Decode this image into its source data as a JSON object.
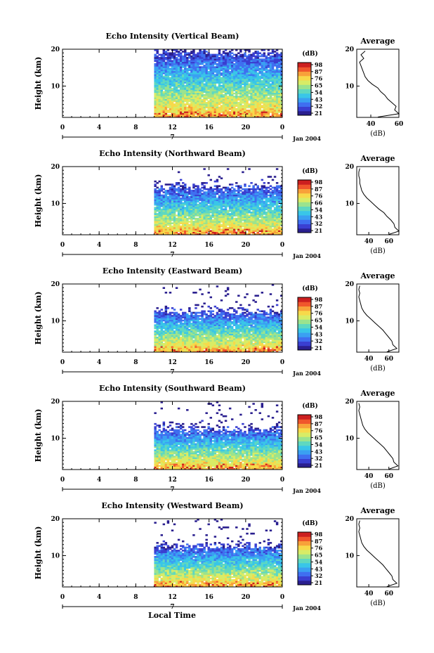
{
  "figure": {
    "xlabel_bottom": "Local Time",
    "colormap": [
      "#2a1f8f",
      "#3a3fd1",
      "#3f6ff0",
      "#3aa0f2",
      "#39c6e8",
      "#5fd8c0",
      "#9be38e",
      "#d8ec66",
      "#f7d94a",
      "#f8a13a",
      "#f0562c",
      "#cc1f1f"
    ]
  },
  "chart_data": [
    {
      "type": "heatmap",
      "title": "Echo Intensity (Vertical Beam)",
      "ylabel": "Height (km)",
      "yticks": [
        "20",
        "10"
      ],
      "xticks": [
        "0",
        "4",
        "8",
        "12",
        "16",
        "20",
        "0"
      ],
      "xlim": [
        0,
        24
      ],
      "ylim": [
        1.5,
        20
      ],
      "date_label": "Jan 2004",
      "day_label": "7",
      "data_start_hour": 10,
      "colorbar": {
        "title": "(dB)",
        "ticks": [
          "98",
          "87",
          "76",
          "65",
          "54",
          "43",
          "32",
          "21"
        ]
      },
      "average_profile": {
        "title": "Average",
        "xlabel": "(dB)",
        "xticks": [
          "40",
          "60"
        ],
        "yticks": [
          "20",
          "10"
        ],
        "xlim": [
          30,
          60
        ],
        "height_km": [
          1.6,
          2.5,
          3.5,
          4.5,
          5.5,
          6.5,
          7.5,
          8.5,
          9.5,
          10.5,
          11.5,
          12.5,
          13.5,
          14.5,
          15.5,
          16.5,
          17.5,
          18.5,
          19.5
        ],
        "db": [
          45,
          60,
          57,
          58,
          55,
          52,
          50,
          47,
          45,
          41,
          38,
          36,
          35,
          34,
          33,
          32,
          35,
          33,
          36
        ]
      }
    },
    {
      "type": "heatmap",
      "title": "Echo Intensity (Northward Beam)",
      "ylabel": "Height (km)",
      "yticks": [
        "20",
        "10"
      ],
      "xticks": [
        "0",
        "4",
        "8",
        "12",
        "16",
        "20",
        "0"
      ],
      "xlim": [
        0,
        24
      ],
      "ylim": [
        1.5,
        20
      ],
      "date_label": "Jan 2004",
      "day_label": "7",
      "data_start_hour": 10,
      "colorbar": {
        "title": "(dB)",
        "ticks": [
          "98",
          "87",
          "76",
          "66",
          "54",
          "43",
          "32",
          "21"
        ]
      },
      "average_profile": {
        "title": "Average",
        "xlabel": "(dB)",
        "xticks": [
          "40",
          "60"
        ],
        "yticks": [
          "20",
          "10"
        ],
        "xlim": [
          28,
          70
        ],
        "height_km": [
          1.6,
          2.5,
          3.5,
          4.5,
          5.5,
          6.5,
          7.5,
          8.5,
          9.5,
          10.5,
          11.5,
          12.5,
          13.5,
          14.5,
          15.5,
          16.5,
          17.5,
          18.5,
          19.5
        ],
        "db": [
          60,
          70,
          66,
          65,
          62,
          58,
          55,
          50,
          46,
          42,
          38,
          35,
          33,
          32,
          31,
          31,
          30,
          30,
          31
        ]
      }
    },
    {
      "type": "heatmap",
      "title": "Echo Intensity (Eastward Beam)",
      "ylabel": "Height (km)",
      "yticks": [
        "20",
        "10"
      ],
      "xticks": [
        "0",
        "4",
        "8",
        "12",
        "16",
        "20",
        "0"
      ],
      "xlim": [
        0,
        24
      ],
      "ylim": [
        1.5,
        20
      ],
      "date_label": "Jan 2004",
      "day_label": "7",
      "data_start_hour": 10,
      "colorbar": {
        "title": "(dB)",
        "ticks": [
          "98",
          "87",
          "76",
          "65",
          "54",
          "43",
          "32",
          "21"
        ]
      },
      "average_profile": {
        "title": "Average",
        "xlabel": "(dB)",
        "xticks": [
          "40",
          "60"
        ],
        "yticks": [
          "20",
          "10"
        ],
        "xlim": [
          28,
          70
        ],
        "height_km": [
          1.6,
          2.5,
          3.5,
          4.5,
          5.5,
          6.5,
          7.5,
          8.5,
          9.5,
          10.5,
          11.5,
          12.5,
          13.5,
          14.5,
          15.5,
          16.5,
          17.5,
          18.5,
          19.5
        ],
        "db": [
          58,
          68,
          64,
          63,
          60,
          57,
          54,
          50,
          46,
          42,
          38,
          35,
          33,
          32,
          31,
          30,
          31,
          30,
          31
        ]
      }
    },
    {
      "type": "heatmap",
      "title": "Echo Intensity (Southward Beam)",
      "ylabel": "Height (km)",
      "yticks": [
        "20",
        "10"
      ],
      "xticks": [
        "0",
        "4",
        "8",
        "12",
        "16",
        "20",
        "0"
      ],
      "xlim": [
        0,
        24
      ],
      "ylim": [
        1.5,
        20
      ],
      "date_label": "Jan 2004",
      "day_label": "7",
      "data_start_hour": 10,
      "colorbar": {
        "title": "(dB)",
        "ticks": [
          "98",
          "87",
          "76",
          "65",
          "54",
          "43",
          "32",
          "21"
        ]
      },
      "average_profile": {
        "title": "Average",
        "xlabel": "(dB)",
        "xticks": [
          "40",
          "60"
        ],
        "yticks": [
          "20",
          "10"
        ],
        "xlim": [
          28,
          70
        ],
        "height_km": [
          1.6,
          2.5,
          3.5,
          4.5,
          5.5,
          6.5,
          7.5,
          8.5,
          9.5,
          10.5,
          11.5,
          12.5,
          13.5,
          14.5,
          15.5,
          16.5,
          17.5,
          18.5,
          19.5
        ],
        "db": [
          60,
          69,
          65,
          64,
          61,
          58,
          55,
          51,
          47,
          43,
          39,
          36,
          34,
          33,
          32,
          31,
          30,
          31,
          30
        ]
      }
    },
    {
      "type": "heatmap",
      "title": "Echo Intensity (Westward Beam)",
      "ylabel": "Height (km)",
      "yticks": [
        "20",
        "10"
      ],
      "xticks": [
        "0",
        "4",
        "8",
        "12",
        "16",
        "20",
        "0"
      ],
      "xlim": [
        0,
        24
      ],
      "ylim": [
        1.5,
        20
      ],
      "date_label": "Jan 2004",
      "day_label": "7",
      "data_start_hour": 10,
      "colorbar": {
        "title": "(dB)",
        "ticks": [
          "98",
          "87",
          "76",
          "65",
          "54",
          "43",
          "32",
          "21"
        ]
      },
      "average_profile": {
        "title": "Average",
        "xlabel": "(dB)",
        "xticks": [
          "40",
          "60"
        ],
        "yticks": [
          "20",
          "10"
        ],
        "xlim": [
          28,
          70
        ],
        "height_km": [
          1.6,
          2.5,
          3.5,
          4.5,
          5.5,
          6.5,
          7.5,
          8.5,
          9.5,
          10.5,
          11.5,
          12.5,
          13.5,
          14.5,
          15.5,
          16.5,
          17.5,
          18.5,
          19.5
        ],
        "db": [
          58,
          68,
          64,
          63,
          60,
          57,
          54,
          50,
          46,
          42,
          38,
          35,
          33,
          32,
          31,
          30,
          31,
          30,
          31
        ]
      }
    }
  ]
}
